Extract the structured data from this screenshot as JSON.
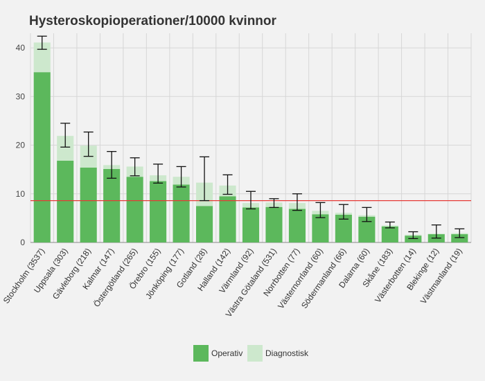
{
  "chart_data": {
    "type": "bar",
    "stacked": true,
    "title": "Hysteroskopioperationer/10000 kvinnor",
    "xlabel": "",
    "ylabel": "",
    "ylim": [
      0,
      43
    ],
    "yticks": [
      0,
      10,
      20,
      30,
      40
    ],
    "grid": true,
    "legend_position": "bottom-center",
    "reference_line": {
      "value": 8.6,
      "color": "#e53935"
    },
    "categories": [
      "Stockholm (3537)",
      "Uppsala (303)",
      "Gävleborg (218)",
      "Kalmar (147)",
      "Östergötland (265)",
      "Örebro (155)",
      "Jönköping (177)",
      "Gotland (28)",
      "Halland (142)",
      "Värmland (92)",
      "Västra Götaland (531)",
      "Norrbotten (77)",
      "Västernorrland (60)",
      "Södermanland (66)",
      "Dalarna (60)",
      "Skåne (183)",
      "Västerbotten (14)",
      "Blekinge (12)",
      "Västmanland (19)"
    ],
    "series": [
      {
        "name": "Operativ",
        "color": "#5cb85c",
        "values": [
          35,
          16.8,
          15.4,
          15.1,
          13.5,
          12.6,
          11.9,
          7.5,
          9.5,
          7.2,
          7.3,
          6.9,
          5.8,
          5.7,
          5.3,
          3.3,
          1.4,
          1.7,
          1.7
        ]
      },
      {
        "name": "Diagnostisk",
        "color": "#cde8cd",
        "values": [
          6.1,
          5.1,
          4.5,
          0.8,
          2.1,
          1.2,
          1.6,
          4.8,
          2.2,
          0.9,
          0.9,
          1.2,
          0.7,
          0.4,
          0.3,
          0.2,
          0.2,
          0.1,
          0.2
        ]
      }
    ],
    "error_bars": {
      "color": "#111111",
      "low": [
        39.7,
        19.6,
        17.7,
        13.2,
        13.7,
        12.2,
        11.4,
        8.6,
        9.9,
        6.9,
        7.2,
        6.6,
        5.1,
        4.8,
        4.3,
        3.0,
        0.8,
        0.9,
        1.0
      ],
      "high": [
        42.4,
        24.5,
        22.7,
        18.7,
        17.4,
        16.1,
        15.6,
        17.6,
        13.9,
        10.5,
        9.0,
        10.0,
        8.2,
        7.8,
        7.2,
        4.2,
        2.2,
        3.6,
        2.8
      ]
    }
  }
}
